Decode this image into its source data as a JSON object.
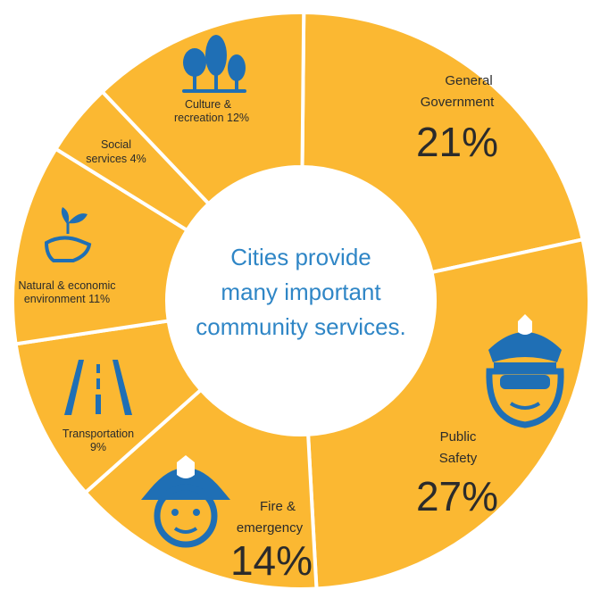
{
  "chart_data": {
    "type": "pie",
    "donut": true,
    "center_text": [
      "Cities provide",
      "many important",
      "community services."
    ],
    "slices": [
      {
        "label_lines": [
          "General",
          "Government"
        ],
        "value_text": "21%",
        "value": 21
      },
      {
        "label_lines": [
          "Public",
          "Safety"
        ],
        "value_text": "27%",
        "value": 27
      },
      {
        "label_lines": [
          "Fire &",
          "emergency"
        ],
        "value_text": "14%",
        "value": 14
      },
      {
        "label_lines": [
          "Transportation",
          "9%"
        ],
        "value_text": "",
        "value": 9
      },
      {
        "label_lines": [
          "Natural & economic",
          "environment 11%"
        ],
        "value_text": "",
        "value": 11
      },
      {
        "label_lines": [
          "Social",
          "services 4%"
        ],
        "value_text": "",
        "value": 4
      },
      {
        "label_lines": [
          "Culture &",
          "recreation 12%"
        ],
        "value_text": "",
        "value": 12
      }
    ],
    "colors": {
      "slice": "#fbb832",
      "separator": "#ffffff",
      "icon": "#1f6fb5",
      "center_text": "#2f86c6",
      "label": "#2b2b2b"
    },
    "icons": [
      "trees-icon",
      "police-officer-icon",
      "firefighter-icon",
      "road-icon",
      "hand-sprout-icon"
    ]
  }
}
